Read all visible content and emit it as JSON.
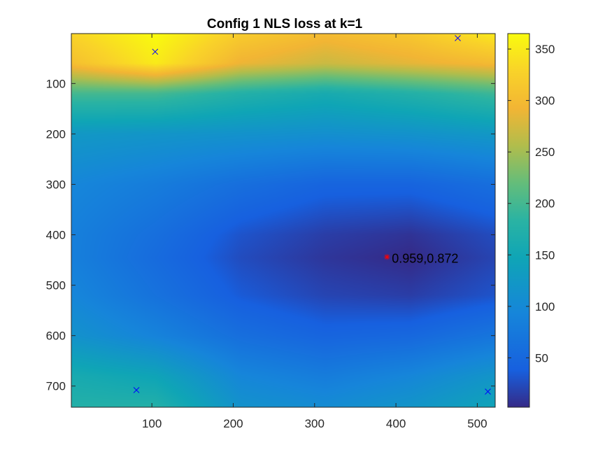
{
  "chart_data": {
    "type": "heatmap",
    "title": "Config 1 NLS loss at k=1",
    "xlabel": "",
    "ylabel": "",
    "xlim": [
      1,
      522
    ],
    "ylim": [
      1,
      742
    ],
    "y_direction": "reversed",
    "x_ticks": [
      100,
      200,
      300,
      400,
      500
    ],
    "y_ticks": [
      100,
      200,
      300,
      400,
      500,
      600,
      700
    ],
    "colormap": "parula",
    "color_limits": [
      2,
      365
    ],
    "colorbar": {
      "location": "right",
      "ticks": [
        50,
        100,
        150,
        200,
        250,
        300,
        350
      ]
    },
    "grid": false,
    "field_samples": {
      "description": "approximate loss values sampled on a grid",
      "x": [
        1,
        105,
        209,
        313,
        418,
        522
      ],
      "y": [
        1,
        60,
        120,
        200,
        300,
        400,
        445,
        520,
        600,
        680,
        742
      ],
      "z": [
        [
          330,
          365,
          320,
          300,
          315,
          350
        ],
        [
          305,
          350,
          290,
          270,
          285,
          300
        ],
        [
          200,
          200,
          175,
          160,
          175,
          195
        ],
        [
          125,
          120,
          115,
          110,
          115,
          125
        ],
        [
          95,
          80,
          60,
          45,
          45,
          60
        ],
        [
          85,
          60,
          30,
          15,
          8,
          25
        ],
        [
          85,
          55,
          25,
          10,
          2,
          20
        ],
        [
          95,
          65,
          35,
          20,
          15,
          30
        ],
        [
          115,
          90,
          60,
          45,
          50,
          70
        ],
        [
          160,
          145,
          95,
          80,
          95,
          120
        ],
        [
          175,
          175,
          115,
          105,
          120,
          145
        ]
      ]
    },
    "markers": [
      {
        "symbol": "x",
        "color": "#0000ff",
        "x": 104,
        "y": 37
      },
      {
        "symbol": "x",
        "color": "#0000ff",
        "x": 476,
        "y": 10
      },
      {
        "symbol": "x",
        "color": "#0000ff",
        "x": 81,
        "y": 708
      },
      {
        "symbol": "x",
        "color": "#0000ff",
        "x": 513,
        "y": 711
      },
      {
        "symbol": "*",
        "color": "#ff0000",
        "x": 389,
        "y": 444
      }
    ],
    "annotations": [
      {
        "text": "0.959,0.872",
        "x": 395,
        "y": 447
      }
    ]
  }
}
